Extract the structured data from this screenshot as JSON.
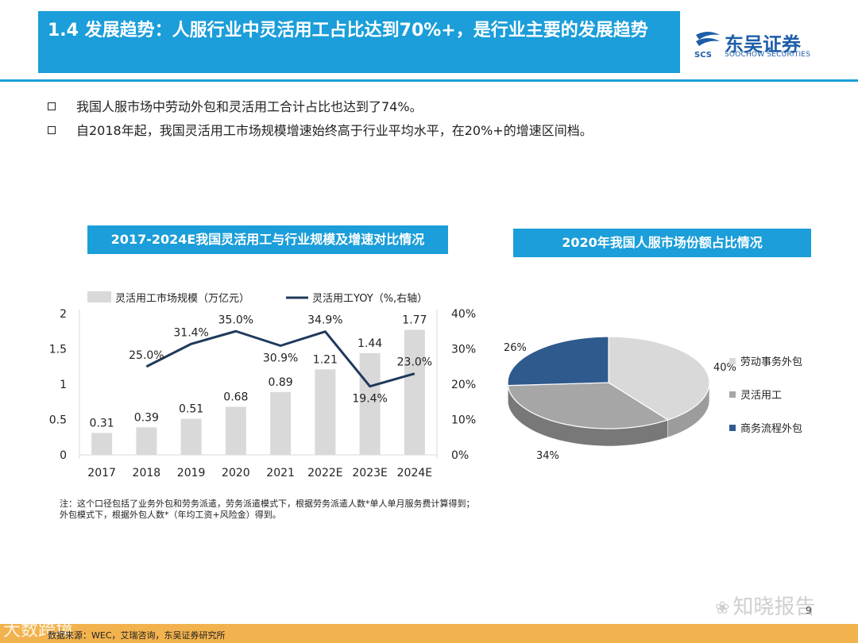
{
  "header": {
    "title": "1.4 发展趋势：人服行业中灵活用工占比达到70%+，是行业主要的发展趋势",
    "logo_cn": "东吴证券",
    "logo_en": "SOOCHOW SECURITIES",
    "logo_mark": "SCS"
  },
  "bullets": [
    "我国人服市场中劳动外包和灵活用工合计占比也达到了74%。",
    "自2018年起，我国灵活用工市场规模增速始终高于行业平均水平，在20%+的增速区间档。"
  ],
  "chart_data": [
    {
      "type": "bar",
      "title": "2017-2024E我国灵活用工与行业规模及增速对比情况",
      "categories": [
        "2017",
        "2018",
        "2019",
        "2020",
        "2021",
        "2022E",
        "2023E",
        "2024E"
      ],
      "series": [
        {
          "name": "灵活用工市场规模（万亿元）",
          "type": "bar",
          "axis": "left",
          "values": [
            0.31,
            0.39,
            0.51,
            0.68,
            0.89,
            1.21,
            1.44,
            1.77
          ],
          "labels": [
            "0.31",
            "0.39",
            "0.51",
            "0.68",
            "0.89",
            "1.21",
            "1.44",
            "1.77"
          ],
          "color": "#d9d9d9"
        },
        {
          "name": "灵活用工YOY（%,右轴）",
          "type": "line",
          "axis": "right",
          "values": [
            null,
            25.0,
            31.4,
            35.0,
            30.9,
            34.9,
            19.4,
            23.0
          ],
          "labels": [
            "",
            "25.0%",
            "31.4%",
            "35.0%",
            "30.9%",
            "34.9%",
            "19.4%",
            "23.0%"
          ],
          "color": "#1f3a5a"
        }
      ],
      "ylim": [
        0,
        2
      ],
      "y_ticks": [
        "0",
        "0.5",
        "1",
        "1.5",
        "2"
      ],
      "y2lim": [
        0,
        40
      ],
      "y2_ticks": [
        "0%",
        "10%",
        "20%",
        "30%",
        "40%"
      ],
      "legend": "top",
      "grid": false
    },
    {
      "type": "pie",
      "title": "2020年我国人服市场份额占比情况",
      "slices": [
        {
          "name": "劳动事务外包",
          "value": 40,
          "label": "40%",
          "color": "#d9d9d9"
        },
        {
          "name": "灵活用工",
          "value": 34,
          "label": "34%",
          "color": "#a6a6a6"
        },
        {
          "name": "商务流程外包",
          "value": 26,
          "label": "26%",
          "color": "#2e5a8e"
        }
      ],
      "legend": "right"
    }
  ],
  "note": "注：这个口径包括了业务外包和劳务派遣，劳务派遣模式下，根据劳务派遣人数*单人单月服务费计算得到；外包模式下，根据外包人数*（年均工资+风险金）得到。",
  "footer": {
    "source": "数据来源：WEC，艾瑞咨询，东吴证券研究所",
    "page": "9",
    "watermark": "知晓报告",
    "watermark_left": "大数跨境"
  },
  "colors": {
    "accent": "#1b9ed9",
    "footer": "#f2b24d",
    "line": "#1f3a5a",
    "bar": "#d9d9d9"
  }
}
